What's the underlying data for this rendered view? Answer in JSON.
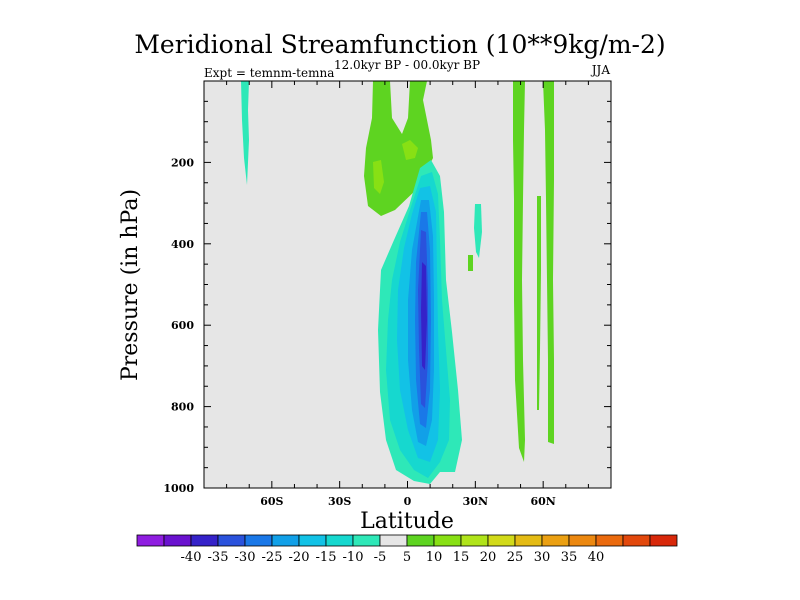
{
  "chart_data": {
    "type": "contour",
    "title": "Meridional Streamfunction (10**9kg/m-2)",
    "subtitle": "12.0kyr BP - 00.0kyr BP",
    "experiment": "Expt = temnm-temna",
    "season": "JJA",
    "xlabel": "Latitude",
    "ylabel": "Pressure (in hPa)",
    "xlim": [
      -90,
      90
    ],
    "ylim": [
      1000,
      0
    ],
    "x_ticks": [
      {
        "value": -60,
        "label": "60S"
      },
      {
        "value": -30,
        "label": "30S"
      },
      {
        "value": 0,
        "label": "0"
      },
      {
        "value": 30,
        "label": "30N"
      },
      {
        "value": 60,
        "label": "60N"
      }
    ],
    "y_ticks": [
      {
        "value": 200,
        "label": "200"
      },
      {
        "value": 400,
        "label": "400"
      },
      {
        "value": 600,
        "label": "600"
      },
      {
        "value": 800,
        "label": "800"
      },
      {
        "value": 1000,
        "label": "1000"
      }
    ],
    "background_color": "#e6e6e6",
    "colorbar": {
      "colors": [
        "#8f1de0",
        "#6a12cf",
        "#3522c9",
        "#2a52dc",
        "#1a78e8",
        "#11a0e8",
        "#12c2e6",
        "#16d8cf",
        "#2ee8b8",
        "#e6e6e6",
        "#5ed421",
        "#88e014",
        "#b0e41a",
        "#d2da19",
        "#e4bb14",
        "#eba012",
        "#ec8810",
        "#ea6a0e",
        "#e2480c",
        "#d8280a"
      ],
      "labels": [
        "-40",
        "-35",
        "-30",
        "-25",
        "-20",
        "-15",
        "-10",
        "-5",
        "5",
        "10",
        "15",
        "20",
        "25",
        "30",
        "35",
        "40"
      ]
    },
    "features": [
      {
        "name": "equatorial-negative-cell",
        "sign": "negative",
        "lat_range": [
          -15,
          25
        ],
        "pressure_range": [
          200,
          980
        ],
        "min_value": -35,
        "center_lat": 8,
        "center_pressure": 550
      },
      {
        "name": "upper-tropical-positive-cell",
        "sign": "positive",
        "lat_range": [
          -13,
          10
        ],
        "pressure_range": [
          0,
          320
        ],
        "max_value": 10
      },
      {
        "name": "high-latitude-positive-strip",
        "sign": "positive",
        "lat_range": [
          48,
          56
        ],
        "pressure_range": [
          0,
          970
        ],
        "max_value": 10
      },
      {
        "name": "southern-high-lat-negative-strip",
        "sign": "negative",
        "lat_range": [
          -73,
          -69
        ],
        "pressure_range": [
          0,
          190
        ],
        "min_value": -5
      }
    ]
  }
}
